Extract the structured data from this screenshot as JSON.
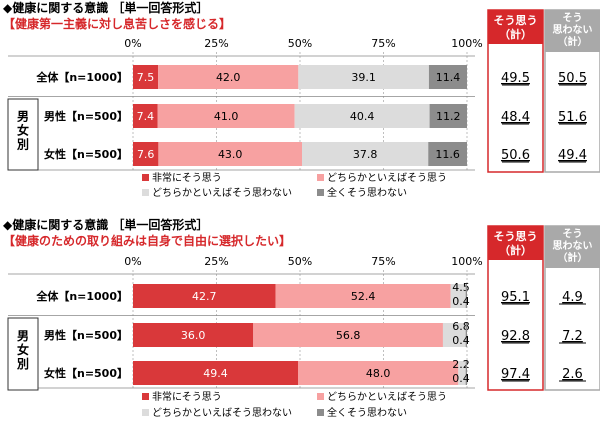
{
  "colors": {
    "very": "#d9383a",
    "somewhat": "#f7a1a1",
    "notmuch": "#dcdcdc",
    "notatall": "#8c8c8c",
    "accent": "#d6282b",
    "panel_yes": "#d6282b",
    "panel_no": "#a9a9a9",
    "section_line": "#888888"
  },
  "legend": [
    "非常にそう思う",
    "どちらかといえばそう思う",
    "どちらかといえばそう思わない",
    "全くそう思わない"
  ],
  "group_label": "男女別",
  "summary_headers": {
    "yes": "そう思う\n（計）",
    "no": "そう\n思わない\n（計）"
  },
  "chart_data": [
    {
      "type": "bar",
      "title": "◆健康に関する意識 ［単一回答形式］",
      "subtitle": "【健康第一主義に対し息苦しさを感じる】",
      "xlim": [
        0,
        100
      ],
      "xticks": [
        "0%",
        "25%",
        "50%",
        "75%",
        "100%"
      ],
      "categories": [
        "全体【n=1000】",
        "男性【n=500】",
        "女性【n=500】"
      ],
      "series": [
        {
          "name": "非常にそう思う",
          "values": [
            7.5,
            7.4,
            7.6
          ]
        },
        {
          "name": "どちらかといえばそう思う",
          "values": [
            42.0,
            41.0,
            43.0
          ]
        },
        {
          "name": "どちらかといえばそう思わない",
          "values": [
            39.1,
            40.4,
            37.8
          ]
        },
        {
          "name": "全くそう思わない",
          "values": [
            11.4,
            11.2,
            11.6
          ]
        }
      ],
      "labels": [
        [
          "7.5",
          "42.0",
          "39.1",
          "11.4"
        ],
        [
          "7.4",
          "41.0",
          "40.4",
          "11.2"
        ],
        [
          "7.6",
          "43.0",
          "37.8",
          "11.6"
        ]
      ],
      "yes_total": [
        "49.5",
        "48.4",
        "50.6"
      ],
      "no_total": [
        "50.5",
        "51.6",
        "49.4"
      ]
    },
    {
      "type": "bar",
      "title": "◆健康に関する意識 ［単一回答形式］",
      "subtitle": "【健康のための取り組みは自身で自由に選択したい】",
      "xlim": [
        0,
        100
      ],
      "xticks": [
        "0%",
        "25%",
        "50%",
        "75%",
        "100%"
      ],
      "categories": [
        "全体【n=1000】",
        "男性【n=500】",
        "女性【n=500】"
      ],
      "series": [
        {
          "name": "非常にそう思う",
          "values": [
            42.7,
            36.0,
            49.4
          ]
        },
        {
          "name": "どちらかといえばそう思う",
          "values": [
            52.4,
            56.8,
            48.0
          ]
        },
        {
          "name": "どちらかといえばそう思わない",
          "values": [
            4.5,
            6.8,
            2.2
          ]
        },
        {
          "name": "全くそう思わない",
          "values": [
            0.4,
            0.4,
            0.4
          ]
        }
      ],
      "labels": [
        [
          "42.7",
          "52.4",
          "4.5",
          "0.4"
        ],
        [
          "36.0",
          "56.8",
          "6.8",
          "0.4"
        ],
        [
          "49.4",
          "48.0",
          "2.2",
          "0.4"
        ]
      ],
      "yes_total": [
        "95.1",
        "92.8",
        "97.4"
      ],
      "no_total": [
        "4.9",
        "7.2",
        "2.6"
      ]
    }
  ]
}
